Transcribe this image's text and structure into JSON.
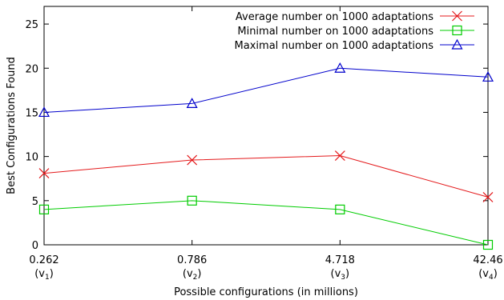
{
  "chart_data": {
    "type": "line",
    "xlabel": "Possible configurations (in millions)",
    "ylabel": "Best Configurations Found",
    "ylim": [
      0,
      27
    ],
    "yticks": [
      0,
      5,
      10,
      15,
      20,
      25
    ],
    "grid": false,
    "legend_position": "top-right",
    "categories": [
      {
        "value": "0.262",
        "sub_base": "(v",
        "sub_idx": "1",
        "sub_close": ")"
      },
      {
        "value": "0.786",
        "sub_base": "(v",
        "sub_idx": "2",
        "sub_close": ")"
      },
      {
        "value": "4.718",
        "sub_base": "(v",
        "sub_idx": "3",
        "sub_close": ")"
      },
      {
        "value": "42.46",
        "sub_base": "(v",
        "sub_idx": "4",
        "sub_close": ")"
      }
    ],
    "series": [
      {
        "name": "Average number on 1000 adaptations",
        "color": "#e41a1c",
        "marker": "x",
        "values": [
          8.1,
          9.6,
          10.1,
          5.4
        ]
      },
      {
        "name": "Minimal number on 1000 adaptations",
        "color": "#00cc00",
        "marker": "square",
        "values": [
          4.0,
          5.0,
          4.0,
          0.0
        ]
      },
      {
        "name": "Maximal number on 1000 adaptations",
        "color": "#0000cc",
        "marker": "triangle",
        "values": [
          15.0,
          16.0,
          20.0,
          19.0
        ]
      }
    ]
  }
}
